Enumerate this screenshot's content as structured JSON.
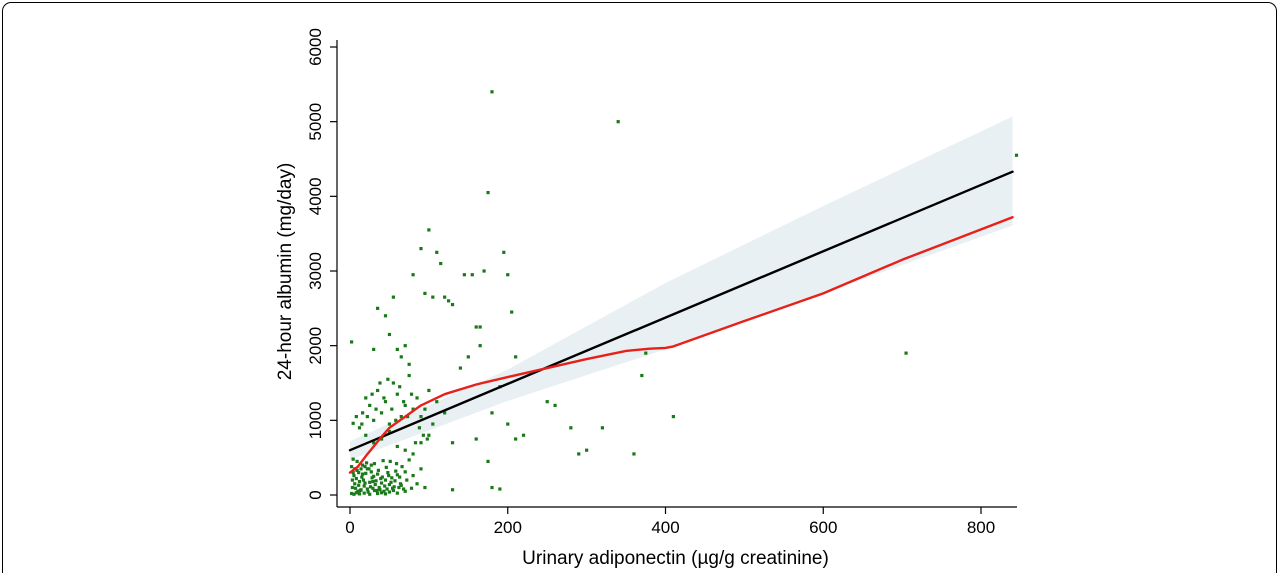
{
  "chart_data": {
    "type": "scatter",
    "xlabel": "Urinary adiponectin (µg/g creatinine)",
    "ylabel": "24-hour albumin (mg/day)",
    "xlim": [
      -10,
      850
    ],
    "ylim": [
      -150,
      6100
    ],
    "x_ticks": [
      0,
      200,
      400,
      600,
      800
    ],
    "y_ticks": [
      0,
      1000,
      2000,
      3000,
      4000,
      5000,
      6000
    ],
    "grid": false,
    "legend": "none",
    "colors": {
      "points": "#1a7a1a",
      "fit_line": "#000000",
      "lowess": "#e8201a",
      "ci_band": "#e9f0f3"
    },
    "scatter_points": [
      [
        2,
        380
      ],
      [
        4,
        300
      ],
      [
        6,
        150
      ],
      [
        3,
        100
      ],
      [
        8,
        220
      ],
      [
        10,
        50
      ],
      [
        12,
        180
      ],
      [
        5,
        260
      ],
      [
        7,
        90
      ],
      [
        9,
        330
      ],
      [
        11,
        130
      ],
      [
        14,
        70
      ],
      [
        15,
        240
      ],
      [
        16,
        400
      ],
      [
        18,
        120
      ],
      [
        20,
        290
      ],
      [
        13,
        60
      ],
      [
        17,
        200
      ],
      [
        19,
        160
      ],
      [
        22,
        80
      ],
      [
        24,
        350
      ],
      [
        26,
        110
      ],
      [
        28,
        230
      ],
      [
        21,
        430
      ],
      [
        23,
        40
      ],
      [
        25,
        170
      ],
      [
        27,
        310
      ],
      [
        29,
        90
      ],
      [
        30,
        250
      ],
      [
        32,
        140
      ],
      [
        34,
        60
      ],
      [
        31,
        420
      ],
      [
        33,
        190
      ],
      [
        35,
        280
      ],
      [
        37,
        100
      ],
      [
        39,
        220
      ],
      [
        36,
        330
      ],
      [
        38,
        70
      ],
      [
        40,
        160
      ],
      [
        42,
        460
      ],
      [
        41,
        240
      ],
      [
        44,
        120
      ],
      [
        46,
        370
      ],
      [
        43,
        50
      ],
      [
        45,
        200
      ],
      [
        48,
        300
      ],
      [
        50,
        140
      ],
      [
        47,
        80
      ],
      [
        49,
        260
      ],
      [
        52,
        170
      ],
      [
        54,
        90
      ],
      [
        51,
        450
      ],
      [
        53,
        230
      ],
      [
        56,
        110
      ],
      [
        58,
        320
      ],
      [
        55,
        60
      ],
      [
        57,
        190
      ],
      [
        60,
        270
      ],
      [
        62,
        100
      ],
      [
        59,
        420
      ],
      [
        64,
        150
      ],
      [
        66,
        380
      ],
      [
        63,
        240
      ],
      [
        68,
        80
      ],
      [
        70,
        310
      ],
      [
        65,
        130
      ],
      [
        72,
        200
      ],
      [
        75,
        470
      ],
      [
        78,
        90
      ],
      [
        80,
        260
      ],
      [
        85,
        150
      ],
      [
        90,
        350
      ],
      [
        95,
        100
      ],
      [
        2,
        20
      ],
      [
        5,
        10
      ],
      [
        8,
        30
      ],
      [
        12,
        15
      ],
      [
        18,
        25
      ],
      [
        25,
        10
      ],
      [
        3,
        200
      ],
      [
        6,
        350
      ],
      [
        9,
        450
      ],
      [
        4,
        480
      ],
      [
        14,
        350
      ],
      [
        11,
        300
      ],
      [
        16,
        280
      ],
      [
        19,
        380
      ],
      [
        22,
        350
      ],
      [
        27,
        400
      ],
      [
        29,
        180
      ],
      [
        31,
        60
      ],
      [
        35,
        20
      ],
      [
        40,
        30
      ],
      [
        45,
        15
      ],
      [
        50,
        40
      ],
      [
        60,
        25
      ],
      [
        70,
        50
      ],
      [
        4,
        960
      ],
      [
        8,
        1050
      ],
      [
        12,
        900
      ],
      [
        16,
        1100
      ],
      [
        20,
        1300
      ],
      [
        25,
        1200
      ],
      [
        30,
        1000
      ],
      [
        35,
        1400
      ],
      [
        40,
        1100
      ],
      [
        45,
        1250
      ],
      [
        50,
        950
      ],
      [
        55,
        1500
      ],
      [
        60,
        1350
      ],
      [
        65,
        1050
      ],
      [
        70,
        1200
      ],
      [
        75,
        1600
      ],
      [
        80,
        1150
      ],
      [
        85,
        1300
      ],
      [
        90,
        1050
      ],
      [
        100,
        1400
      ],
      [
        110,
        1250
      ],
      [
        120,
        1100
      ],
      [
        15,
        950
      ],
      [
        22,
        1050
      ],
      [
        28,
        1350
      ],
      [
        33,
        1150
      ],
      [
        38,
        1500
      ],
      [
        43,
        1300
      ],
      [
        48,
        1550
      ],
      [
        53,
        1150
      ],
      [
        58,
        1000
      ],
      [
        63,
        1450
      ],
      [
        68,
        1250
      ],
      [
        73,
        1050
      ],
      [
        78,
        1350
      ],
      [
        83,
        700
      ],
      [
        88,
        900
      ],
      [
        93,
        800
      ],
      [
        98,
        750
      ],
      [
        20,
        800
      ],
      [
        30,
        700
      ],
      [
        40,
        750
      ],
      [
        50,
        850
      ],
      [
        60,
        650
      ],
      [
        70,
        600
      ],
      [
        80,
        550
      ],
      [
        90,
        700
      ],
      [
        100,
        800
      ],
      [
        105,
        950
      ],
      [
        95,
        1150
      ],
      [
        2,
        2050
      ],
      [
        30,
        1950
      ],
      [
        35,
        2500
      ],
      [
        45,
        2400
      ],
      [
        55,
        2650
      ],
      [
        50,
        2150
      ],
      [
        60,
        1950
      ],
      [
        65,
        1850
      ],
      [
        70,
        2000
      ],
      [
        75,
        1750
      ],
      [
        80,
        2950
      ],
      [
        90,
        3300
      ],
      [
        95,
        2700
      ],
      [
        100,
        3550
      ],
      [
        110,
        3250
      ],
      [
        115,
        3100
      ],
      [
        105,
        2650
      ],
      [
        120,
        2650
      ],
      [
        125,
        2600
      ],
      [
        130,
        2550
      ],
      [
        140,
        1700
      ],
      [
        145,
        2950
      ],
      [
        150,
        1850
      ],
      [
        160,
        2250
      ],
      [
        165,
        2000
      ],
      [
        170,
        3000
      ],
      [
        175,
        4050
      ],
      [
        180,
        5400
      ],
      [
        165,
        2250
      ],
      [
        155,
        2950
      ],
      [
        195,
        3250
      ],
      [
        200,
        2950
      ],
      [
        205,
        2450
      ],
      [
        210,
        1850
      ],
      [
        130,
        700
      ],
      [
        160,
        750
      ],
      [
        175,
        450
      ],
      [
        180,
        100
      ],
      [
        190,
        80
      ],
      [
        130,
        70
      ],
      [
        180,
        1100
      ],
      [
        190,
        1450
      ],
      [
        200,
        950
      ],
      [
        210,
        750
      ],
      [
        220,
        800
      ],
      [
        250,
        1250
      ],
      [
        260,
        1200
      ],
      [
        280,
        900
      ],
      [
        290,
        550
      ],
      [
        300,
        600
      ],
      [
        320,
        900
      ],
      [
        340,
        5000
      ],
      [
        360,
        550
      ],
      [
        370,
        1600
      ],
      [
        375,
        1900
      ],
      [
        410,
        1050
      ],
      [
        705,
        1900
      ],
      [
        845,
        4550
      ]
    ],
    "series": [
      {
        "type": "line",
        "x": [
          0,
          840
        ],
        "y": [
          600,
          4330
        ]
      },
      {
        "type": "line",
        "x": [
          0,
          10,
          20,
          30,
          40,
          50,
          70,
          90,
          120,
          160,
          200,
          250,
          300,
          350,
          380,
          400,
          410,
          500,
          600,
          700,
          840
        ],
        "y": [
          300,
          380,
          520,
          650,
          780,
          900,
          1050,
          1200,
          1350,
          1480,
          1580,
          1700,
          1820,
          1930,
          1960,
          1970,
          1990,
          2330,
          2700,
          3150,
          3720
        ]
      }
    ],
    "confidence_band": {
      "x": [
        0,
        200,
        400,
        600,
        840
      ],
      "lower": [
        470,
        1260,
        1950,
        2700,
        3610
      ],
      "upper": [
        720,
        1680,
        2840,
        3870,
        5070
      ]
    }
  }
}
